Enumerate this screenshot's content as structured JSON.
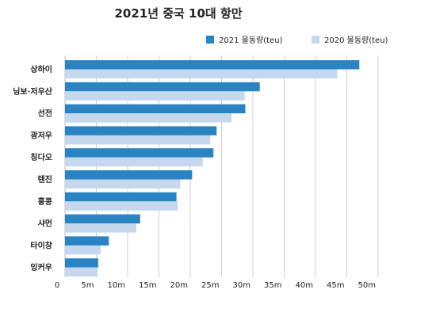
{
  "chart_data": {
    "type": "bar",
    "orientation": "horizontal",
    "title": "2021년 중국 10대 항만",
    "categories": [
      "상하이",
      "닝보·저우산",
      "선전",
      "광저우",
      "칭다오",
      "텐진",
      "홍콩",
      "샤먼",
      "타이창",
      "잉커우"
    ],
    "series": [
      {
        "name": "2021 물동량(teu)",
        "color": "#2a83c2",
        "values": [
          47.0,
          31.1,
          28.8,
          24.2,
          23.7,
          20.3,
          17.8,
          12.0,
          7.0,
          5.3
        ]
      },
      {
        "name": "2020 물동량(teu)",
        "color": "#c5d8ee",
        "values": [
          43.5,
          28.7,
          26.6,
          23.2,
          22.0,
          18.4,
          18.0,
          11.4,
          5.7,
          5.2
        ]
      }
    ],
    "xlim": [
      0,
      50
    ],
    "x_ticks": [
      0,
      5,
      10,
      15,
      20,
      25,
      30,
      35,
      40,
      45,
      50
    ],
    "x_tick_labels": [
      "0",
      "5m",
      "10m",
      "15m",
      "20m",
      "25m",
      "30m",
      "35m",
      "40m",
      "45m",
      "50m"
    ],
    "grid": true,
    "legend_position": "top-right"
  }
}
